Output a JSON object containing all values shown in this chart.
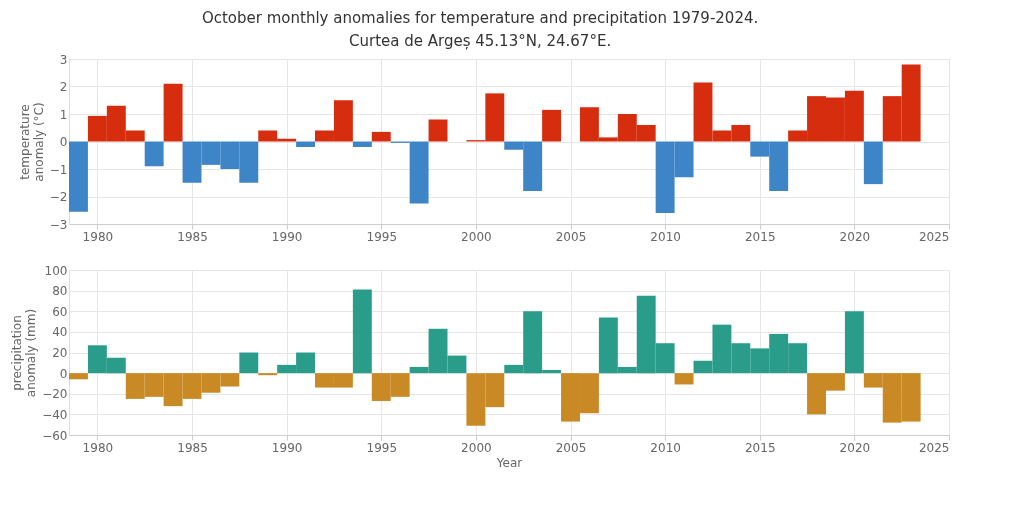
{
  "chart_data": [
    {
      "type": "bar",
      "title": "October monthly anomalies for temperature and precipitation 1979-2024.",
      "subtitle": "Curtea de Argeș 45.13°N, 24.67°E.",
      "ylabel": "temperature anomaly (°C)",
      "x": [
        1979,
        1980,
        1981,
        1982,
        1983,
        1984,
        1985,
        1986,
        1987,
        1988,
        1989,
        1990,
        1991,
        1992,
        1993,
        1994,
        1995,
        1996,
        1997,
        1998,
        1999,
        2000,
        2001,
        2002,
        2003,
        2004,
        2005,
        2006,
        2007,
        2008,
        2009,
        2010,
        2011,
        2012,
        2013,
        2014,
        2015,
        2016,
        2017,
        2018,
        2019,
        2020,
        2021,
        2022,
        2023
      ],
      "values": [
        -2.55,
        0.93,
        1.3,
        0.4,
        -0.9,
        2.1,
        -1.5,
        -0.85,
        -1.0,
        -1.5,
        0.4,
        0.1,
        -0.2,
        0.4,
        1.5,
        -0.2,
        0.35,
        -0.05,
        -2.25,
        0.8,
        0,
        0.05,
        1.75,
        -0.3,
        -1.8,
        1.15,
        0,
        1.25,
        0.15,
        1.0,
        0.6,
        -2.6,
        -1.3,
        2.15,
        0.4,
        0.6,
        -0.55,
        -1.8,
        0.4,
        1.65,
        1.6,
        1.85,
        -1.55,
        1.65,
        2.8
      ],
      "colors": [
        "#3d85c6",
        "#d62d0e",
        "#d62d0e",
        "#d62d0e",
        "#3d85c6",
        "#d62d0e",
        "#3d85c6",
        "#3d85c6",
        "#3d85c6",
        "#3d85c6",
        "#d62d0e",
        "#d62d0e",
        "#3d85c6",
        "#d62d0e",
        "#d62d0e",
        "#3d85c6",
        "#d62d0e",
        "#3d85c6",
        "#3d85c6",
        "#d62d0e",
        "#d62d0e",
        "#d62d0e",
        "#d62d0e",
        "#3d85c6",
        "#3d85c6",
        "#d62d0e",
        "#d62d0e",
        "#d62d0e",
        "#d62d0e",
        "#d62d0e",
        "#d62d0e",
        "#3d85c6",
        "#3d85c6",
        "#d62d0e",
        "#d62d0e",
        "#d62d0e",
        "#3d85c6",
        "#3d85c6",
        "#d62d0e",
        "#d62d0e",
        "#d62d0e",
        "#d62d0e",
        "#3d85c6",
        "#d62d0e",
        "#d62d0e"
      ],
      "xlim": [
        1978.5,
        2025
      ],
      "xticks": [
        1980,
        1985,
        1990,
        1995,
        2000,
        2005,
        2010,
        2015,
        2020,
        2025
      ],
      "ylim": [
        -3,
        3
      ],
      "yticks": [
        -3,
        -2,
        -1,
        0,
        1,
        2,
        3
      ],
      "grid": true
    },
    {
      "type": "bar",
      "xlabel": "Year",
      "ylabel": "precipitation anomaly (mm)",
      "x": [
        1979,
        1980,
        1981,
        1982,
        1983,
        1984,
        1985,
        1986,
        1987,
        1988,
        1989,
        1990,
        1991,
        1992,
        1993,
        1994,
        1995,
        1996,
        1997,
        1998,
        1999,
        2000,
        2001,
        2002,
        2003,
        2004,
        2005,
        2006,
        2007,
        2008,
        2009,
        2010,
        2011,
        2012,
        2013,
        2014,
        2015,
        2016,
        2017,
        2018,
        2019,
        2020,
        2021,
        2022,
        2023
      ],
      "values": [
        -6,
        27,
        15,
        -25,
        -23,
        -32,
        -25,
        -19,
        -13,
        20,
        -2,
        8,
        20,
        -14,
        -14,
        81,
        -27,
        -23,
        6,
        43,
        17,
        -51,
        -33,
        8,
        60,
        3,
        -47,
        -39,
        54,
        6,
        75,
        29,
        -11,
        12,
        47,
        29,
        24,
        38,
        29,
        -40,
        -17,
        60,
        -14,
        -48,
        -47
      ],
      "colors": [
        "#c98a26",
        "#2a9d8a",
        "#2a9d8a",
        "#c98a26",
        "#c98a26",
        "#c98a26",
        "#c98a26",
        "#c98a26",
        "#c98a26",
        "#2a9d8a",
        "#c98a26",
        "#2a9d8a",
        "#2a9d8a",
        "#c98a26",
        "#c98a26",
        "#2a9d8a",
        "#c98a26",
        "#c98a26",
        "#2a9d8a",
        "#2a9d8a",
        "#2a9d8a",
        "#c98a26",
        "#c98a26",
        "#2a9d8a",
        "#2a9d8a",
        "#2a9d8a",
        "#c98a26",
        "#c98a26",
        "#2a9d8a",
        "#2a9d8a",
        "#2a9d8a",
        "#2a9d8a",
        "#c98a26",
        "#2a9d8a",
        "#2a9d8a",
        "#2a9d8a",
        "#2a9d8a",
        "#2a9d8a",
        "#2a9d8a",
        "#c98a26",
        "#c98a26",
        "#2a9d8a",
        "#c98a26",
        "#c98a26",
        "#c98a26"
      ],
      "xlim": [
        1978.5,
        2025
      ],
      "xticks": [
        1980,
        1985,
        1990,
        1995,
        2000,
        2005,
        2010,
        2015,
        2020,
        2025
      ],
      "ylim": [
        -60,
        100
      ],
      "yticks": [
        -60,
        -40,
        -20,
        0,
        20,
        40,
        60,
        80,
        100
      ],
      "grid": true
    }
  ]
}
